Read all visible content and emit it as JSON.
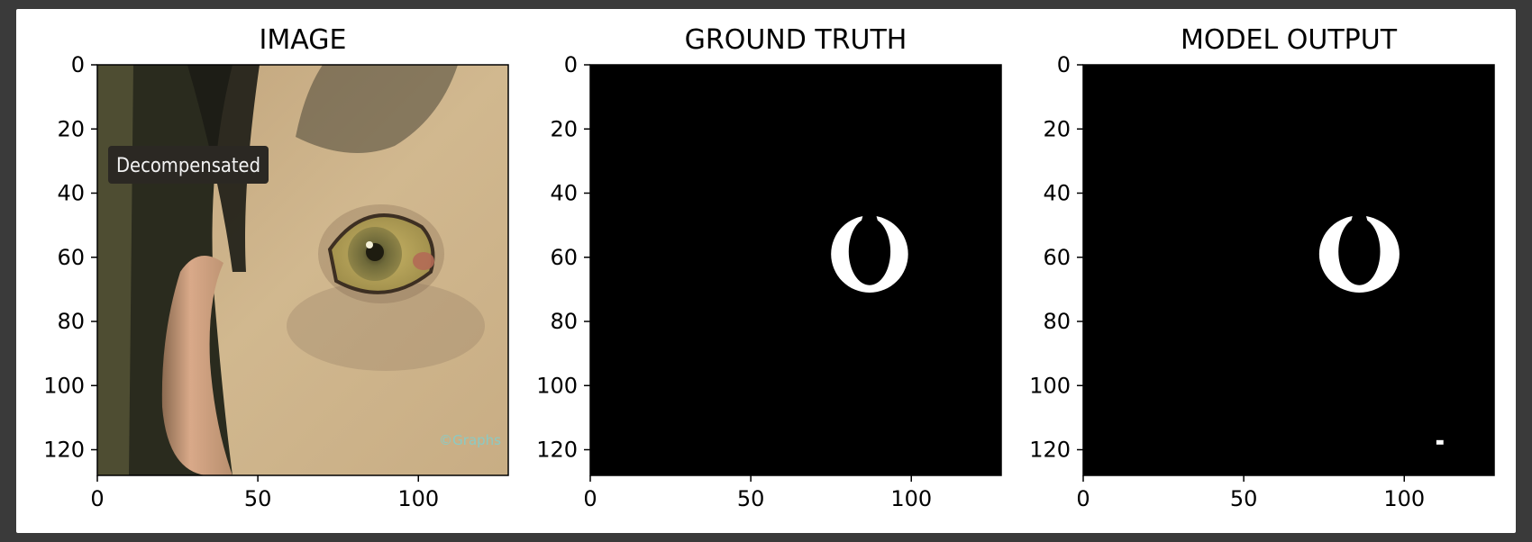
{
  "chart_data": [
    {
      "type": "image",
      "title": "IMAGE",
      "xlim": [
        0,
        128
      ],
      "ylim": [
        128,
        0
      ],
      "xticks": [
        0,
        50,
        100
      ],
      "yticks": [
        0,
        20,
        40,
        60,
        80,
        100,
        120
      ],
      "overlay_text": "Decompensated",
      "watermark": "©Graphs",
      "colors": {
        "skin": "#c9ae86",
        "hair": "#2b2a22",
        "sclera": "#b3a05a",
        "iris": "#6f6a3a",
        "label_bg": "#2b2823"
      }
    },
    {
      "type": "image",
      "title": "GROUND TRUTH",
      "xlim": [
        0,
        128
      ],
      "ylim": [
        128,
        0
      ],
      "xticks": [
        0,
        50,
        100
      ],
      "yticks": [
        0,
        20,
        40,
        60,
        80,
        100,
        120
      ],
      "mask": {
        "shape": "ring",
        "center": [
          87,
          59
        ],
        "outer_radius": [
          12,
          12
        ],
        "inner_radius": [
          6.5,
          10.5
        ]
      },
      "colors": {
        "background": "#000000",
        "mask": "#ffffff"
      }
    },
    {
      "type": "image",
      "title": "MODEL OUTPUT",
      "xlim": [
        0,
        128
      ],
      "ylim": [
        128,
        0
      ],
      "xticks": [
        0,
        50,
        100
      ],
      "yticks": [
        0,
        20,
        40,
        60,
        80,
        100,
        120
      ],
      "mask": {
        "shape": "ring",
        "center": [
          86,
          59
        ],
        "outer_radius": [
          12.5,
          12
        ],
        "inner_radius": [
          6.5,
          10.5
        ],
        "speck": [
          110,
          117
        ]
      },
      "colors": {
        "background": "#000000",
        "mask": "#ffffff"
      }
    }
  ]
}
